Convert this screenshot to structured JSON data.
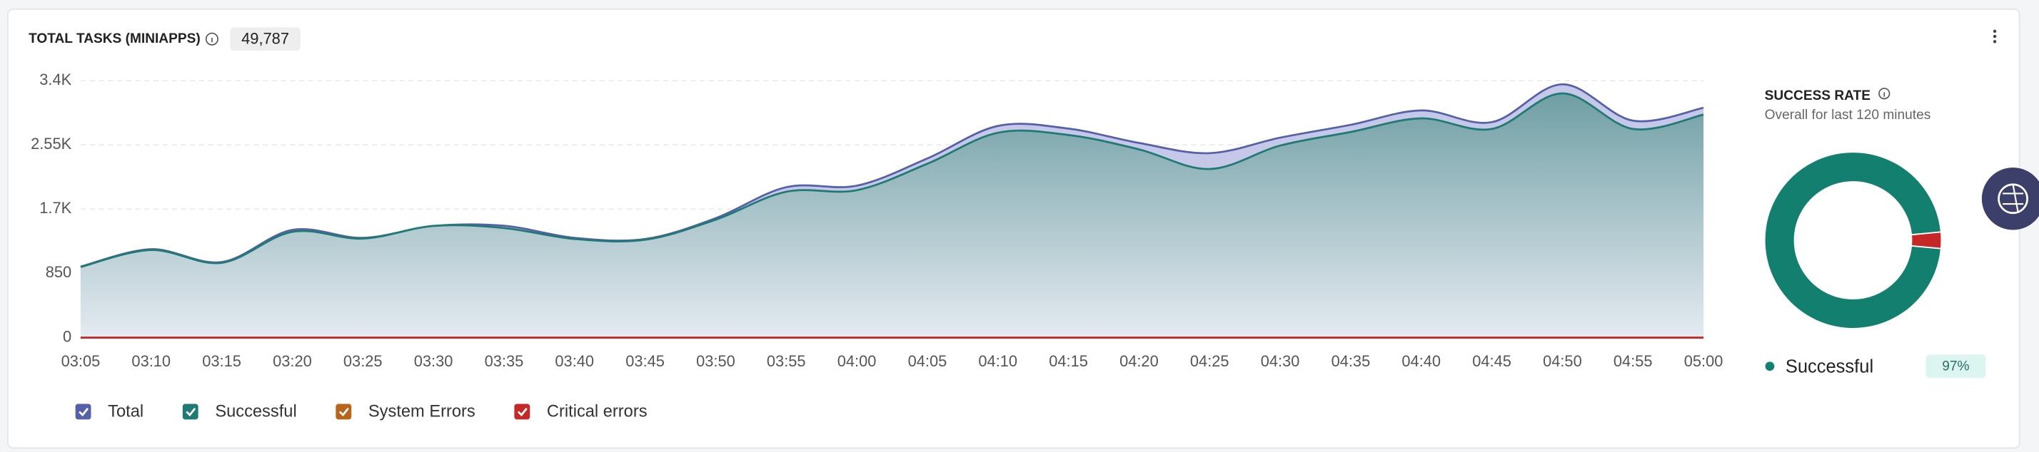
{
  "header": {
    "title": "TOTAL TASKS (MINIAPPS)",
    "total": "49,787"
  },
  "chart_data": {
    "type": "area",
    "categories": [
      "03:05",
      "03:10",
      "03:15",
      "03:20",
      "03:25",
      "03:30",
      "03:35",
      "03:40",
      "03:45",
      "03:50",
      "03:55",
      "04:00",
      "04:05",
      "04:10",
      "04:15",
      "04:20",
      "04:25",
      "04:30",
      "04:35",
      "04:40",
      "04:45",
      "04:50",
      "04:55",
      "05:00"
    ],
    "series": [
      {
        "name": "Total",
        "color": "#5560a8",
        "fill": "#c5c8e8",
        "values": [
          940,
          1170,
          1000,
          1425,
          1320,
          1477,
          1480,
          1320,
          1305,
          1580,
          1990,
          2010,
          2370,
          2800,
          2765,
          2575,
          2440,
          2645,
          2815,
          3005,
          2850,
          3350,
          2870,
          3040
        ]
      },
      {
        "name": "Successful",
        "color": "#1f7a73",
        "fill": "#6f9fa3",
        "values": [
          935,
          1160,
          990,
          1400,
          1310,
          1478,
          1450,
          1305,
          1295,
          1560,
          1930,
          1950,
          2300,
          2710,
          2680,
          2490,
          2230,
          2540,
          2720,
          2900,
          2760,
          3230,
          2760,
          2950
        ]
      },
      {
        "name": "System Errors",
        "color": "#b8651b",
        "values": [
          0,
          0,
          0,
          0,
          0,
          0,
          0,
          0,
          0,
          0,
          0,
          0,
          0,
          0,
          0,
          0,
          0,
          0,
          0,
          0,
          0,
          0,
          0,
          0
        ]
      },
      {
        "name": "Critical errors",
        "color": "#c62828",
        "values": [
          0,
          0,
          0,
          0,
          0,
          0,
          0,
          0,
          0,
          0,
          0,
          0,
          0,
          0,
          0,
          0,
          0,
          0,
          0,
          0,
          0,
          0,
          0,
          0
        ]
      }
    ],
    "ylim": [
      0,
      3400
    ],
    "yticks": [
      0,
      850,
      {
        "value": 1700,
        "label": "1.7K"
      },
      {
        "value": 2550,
        "label": "2.55K"
      },
      {
        "value": 3400,
        "label": "3.4K"
      }
    ],
    "grid": true
  },
  "success_rate": {
    "type": "donut",
    "title": "SUCCESS RATE",
    "subtitle": "Overall for last 120 minutes",
    "slices": [
      {
        "name": "Successful",
        "value": 97,
        "value_label": "97%",
        "color": "#13806f"
      },
      {
        "value": 3,
        "color": "#c62828"
      }
    ]
  }
}
